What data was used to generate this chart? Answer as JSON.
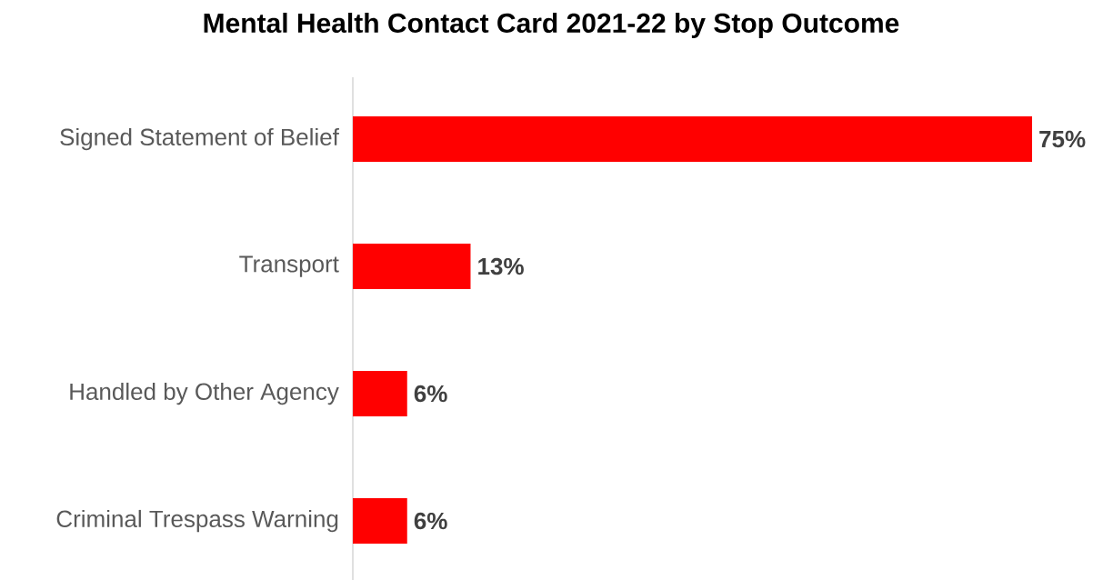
{
  "chart_data": {
    "type": "bar",
    "orientation": "horizontal",
    "title": "Mental Health Contact Card 2021-22 by Stop Outcome",
    "categories": [
      "Signed Statement of Belief",
      "Transport",
      "Handled by Other Agency",
      "Criminal Trespass Warning"
    ],
    "values": [
      75,
      13,
      6,
      6
    ],
    "value_labels": [
      "75%",
      "13%",
      "6%",
      "6%"
    ],
    "color": "#ff0000",
    "tick_labels": "y",
    "grid": false
  }
}
